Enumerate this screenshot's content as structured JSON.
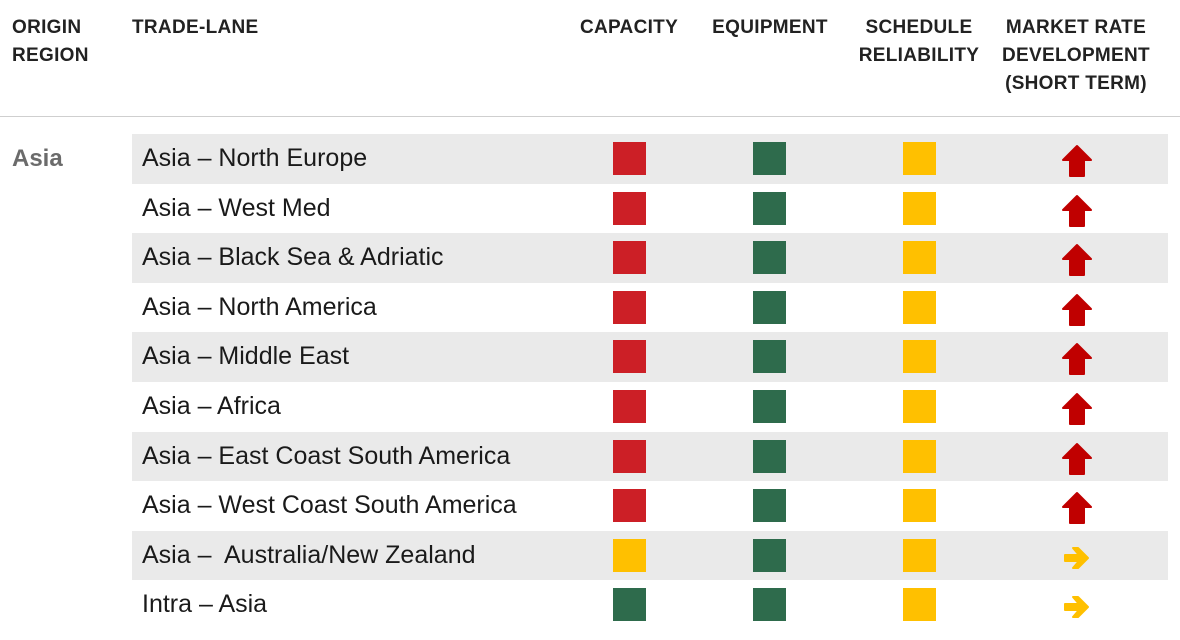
{
  "header": {
    "origin_region": "ORIGIN\nREGION",
    "trade_lane": "TRADE-LANE",
    "capacity": "CAPACITY",
    "equipment": "EQUIPMENT",
    "schedule_reliability": "SCHEDULE\nRELIABILITY",
    "market_rate": "MARKET RATE\nDEVELOPMENT\n(SHORT TERM)"
  },
  "region": "Asia",
  "colors": {
    "red": "#cc1f26",
    "green": "#2e6b4c",
    "yellow": "#ffc000"
  },
  "rows": [
    {
      "lane": "Asia – North Europe",
      "capacity": "red",
      "equipment": "green",
      "schedule": "yellow",
      "trend": "up-arrow-icon"
    },
    {
      "lane": "Asia – West Med",
      "capacity": "red",
      "equipment": "green",
      "schedule": "yellow",
      "trend": "up-arrow-icon"
    },
    {
      "lane": "Asia – Black Sea & Adriatic",
      "capacity": "red",
      "equipment": "green",
      "schedule": "yellow",
      "trend": "up-arrow-icon"
    },
    {
      "lane": "Asia – North America",
      "capacity": "red",
      "equipment": "green",
      "schedule": "yellow",
      "trend": "up-arrow-icon"
    },
    {
      "lane": "Asia – Middle East",
      "capacity": "red",
      "equipment": "green",
      "schedule": "yellow",
      "trend": "up-arrow-icon"
    },
    {
      "lane": "Asia – Africa",
      "capacity": "red",
      "equipment": "green",
      "schedule": "yellow",
      "trend": "up-arrow-icon"
    },
    {
      "lane": "Asia – East Coast South America",
      "capacity": "red",
      "equipment": "green",
      "schedule": "yellow",
      "trend": "up-arrow-icon"
    },
    {
      "lane": "Asia – West Coast South America",
      "capacity": "red",
      "equipment": "green",
      "schedule": "yellow",
      "trend": "up-arrow-icon"
    },
    {
      "lane": "Asia –  Australia/New Zealand",
      "capacity": "yellow",
      "equipment": "green",
      "schedule": "yellow",
      "trend": "right-arrow-icon"
    },
    {
      "lane": "Intra – Asia",
      "capacity": "green",
      "equipment": "green",
      "schedule": "yellow",
      "trend": "right-arrow-icon"
    }
  ]
}
